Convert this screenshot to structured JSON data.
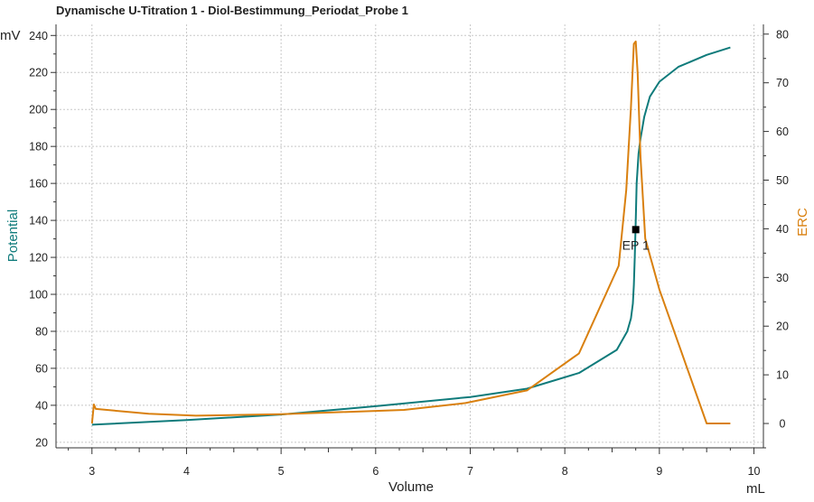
{
  "chart_data": {
    "type": "line",
    "title": "Dynamische U-Titration 1 - Diol-Bestimmung_Periodat_Probe  1",
    "xlabel": "Volume",
    "xunit": "mL",
    "ylabel_left": "Potential",
    "yunit_left": "mV",
    "ylabel_right": "ERC",
    "xlim": [
      2.62,
      10.1
    ],
    "ylim_left": [
      17,
      246
    ],
    "ylim_right": [
      -5,
      82
    ],
    "x_ticks": [
      3,
      4,
      5,
      6,
      7,
      8,
      9,
      10
    ],
    "y_left_ticks": [
      20,
      40,
      60,
      80,
      100,
      120,
      140,
      160,
      180,
      200,
      220,
      240
    ],
    "y_right_ticks": [
      0,
      10,
      20,
      30,
      40,
      50,
      60,
      70,
      80
    ],
    "grid": true,
    "colors": {
      "potential": "#0f7b7b",
      "erc": "#d9800f",
      "marker": "#000000"
    },
    "series": [
      {
        "name": "Potential",
        "axis": "left",
        "x": [
          3.0,
          4.0,
          5.0,
          6.0,
          7.0,
          7.6,
          8.15,
          8.55,
          8.66,
          8.7,
          8.72,
          8.73,
          8.74,
          8.75,
          8.76,
          8.78,
          8.8,
          8.84,
          8.9,
          9.0,
          9.2,
          9.5,
          9.75
        ],
        "values": [
          29.5,
          32,
          35,
          39.5,
          44.5,
          49,
          57.5,
          70,
          80,
          87,
          95,
          105,
          120,
          140,
          160,
          176,
          184,
          196,
          207,
          215,
          223,
          229.5,
          233.5
        ]
      },
      {
        "name": "ERC",
        "axis": "right",
        "x": [
          3.0,
          3.02,
          3.04,
          3.6,
          4.1,
          5.0,
          6.3,
          6.95,
          7.6,
          8.15,
          8.57,
          8.65,
          8.7,
          8.73,
          8.75,
          8.77,
          8.8,
          8.85,
          9.0,
          9.5,
          9.75
        ],
        "values": [
          0,
          3.9,
          3,
          2,
          1.6,
          1.9,
          2.8,
          4.2,
          6.8,
          14.4,
          32.4,
          48,
          65,
          78,
          78.5,
          72,
          55,
          38,
          27.5,
          0,
          0
        ]
      }
    ],
    "annotations": [
      {
        "label": "EP 1",
        "x": 8.75,
        "y": 135,
        "axis": "left"
      }
    ]
  }
}
